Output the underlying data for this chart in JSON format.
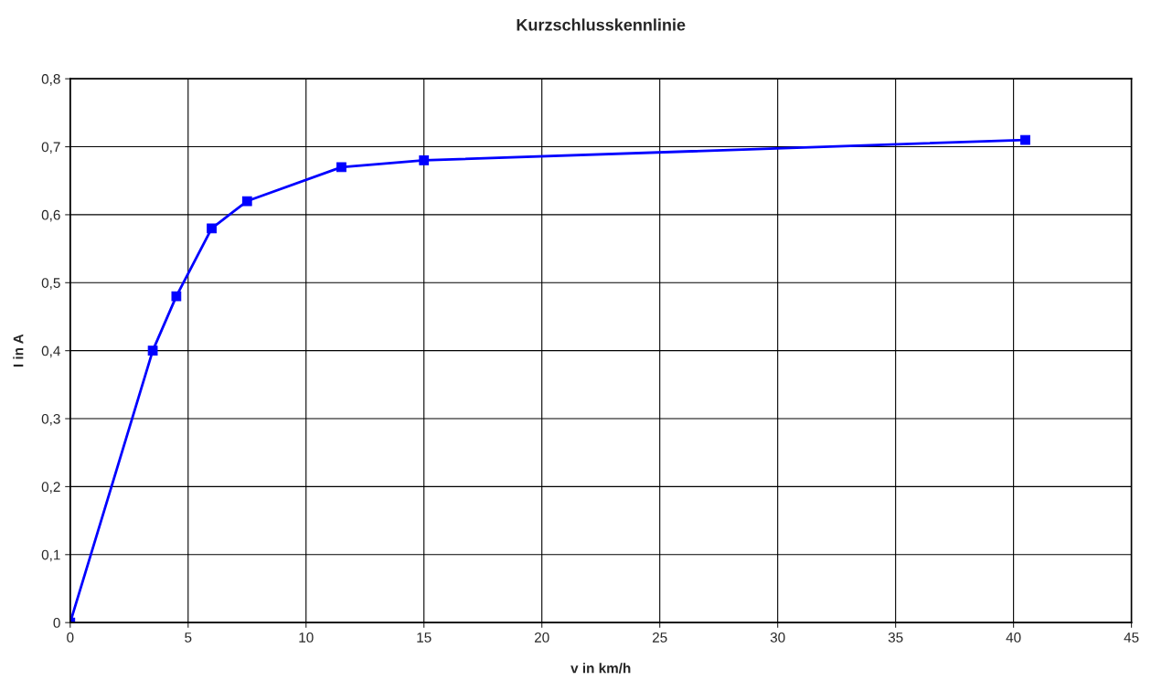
{
  "chart_data": {
    "type": "line",
    "title": "Kurzschlusskennlinie",
    "xlabel": "v in km/h",
    "ylabel": "I in A",
    "x": [
      0,
      3.5,
      4.5,
      6,
      7.5,
      11.5,
      15,
      40.5
    ],
    "series": [
      {
        "color": "#0000ff",
        "values": [
          0,
          0.4,
          0.48,
          0.58,
          0.62,
          0.67,
          0.68,
          0.71
        ]
      }
    ],
    "xlim": [
      0,
      45
    ],
    "xticks": [
      0,
      5,
      10,
      15,
      20,
      25,
      30,
      35,
      40,
      45
    ],
    "ylim": [
      0,
      0.8
    ],
    "yticks": [
      0,
      {
        "value": 0.1,
        "label": "0,1"
      },
      {
        "value": 0.2,
        "label": "0,2"
      },
      {
        "value": 0.3,
        "label": "0,3"
      },
      {
        "value": 0.4,
        "label": "0,4"
      },
      {
        "value": 0.5,
        "label": "0,5"
      },
      {
        "value": 0.6,
        "label": "0,6"
      },
      {
        "value": 0.7,
        "label": "0,7"
      },
      {
        "value": 0.8,
        "label": "0,8"
      }
    ],
    "grid": true,
    "marker": "square",
    "line_style": "solid"
  }
}
